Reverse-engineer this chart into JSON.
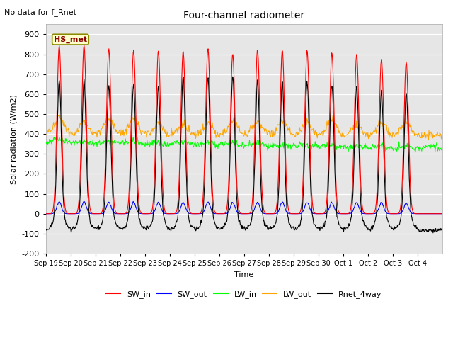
{
  "title": "Four-channel radiometer",
  "top_left_text": "No data for f_Rnet",
  "station_label": "HS_met",
  "ylabel": "Solar radiation (W/m2)",
  "xlabel": "Time",
  "ylim": [
    -200,
    950
  ],
  "yticks": [
    -200,
    -100,
    0,
    100,
    200,
    300,
    400,
    500,
    600,
    700,
    800,
    900
  ],
  "colors": {
    "SW_in": "#ff0000",
    "SW_out": "#0000ff",
    "LW_in": "#00ff00",
    "LW_out": "#ffa500",
    "Rnet_4way": "#000000"
  },
  "x_tick_labels": [
    "Sep 19",
    "Sep 20",
    "Sep 21",
    "Sep 22",
    "Sep 23",
    "Sep 24",
    "Sep 25",
    "Sep 26",
    "Sep 27",
    "Sep 28",
    "Sep 29",
    "Sep 30",
    "Oct 1",
    "Oct 2",
    "Oct 3",
    "Oct 4"
  ],
  "axes_bg": "#e6e6e6",
  "figure_bg": "#ffffff",
  "sw_in_peaks": [
    843,
    845,
    828,
    820,
    818,
    815,
    831,
    803,
    825,
    822,
    820,
    808,
    800,
    775,
    762,
    0
  ],
  "rnet_peaks": [
    670,
    665,
    640,
    650,
    635,
    690,
    688,
    690,
    665,
    658,
    662,
    652,
    640,
    610,
    600,
    0
  ],
  "lw_in_base": 340,
  "lw_out_base": 395,
  "sw_out_scale": 0.07,
  "n_days": 16,
  "peak_hour": 13.0,
  "sw_sigma_hours": 2.2,
  "rnet_sigma_hours": 2.0,
  "night_rnet": -85
}
